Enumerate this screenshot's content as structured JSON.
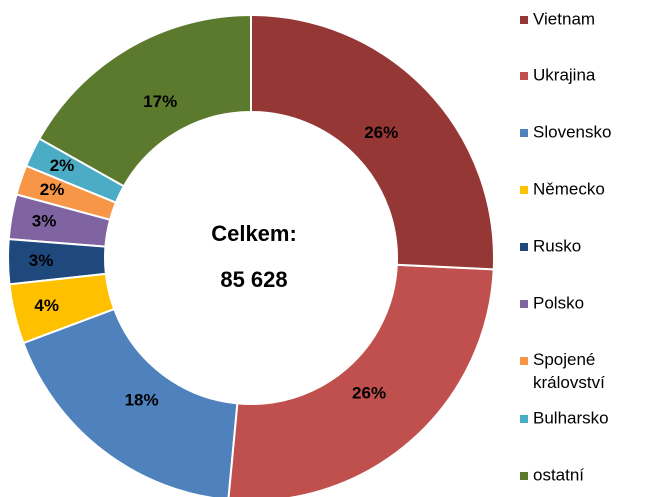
{
  "chart_data": {
    "type": "donut",
    "center_label": "Celkem:",
    "center_value": "85 628",
    "categories": [
      "Vietnam",
      "Ukrajina",
      "Slovensko",
      "Německo",
      "Rusko",
      "Polsko",
      "Spojené království",
      "Bulharsko",
      "ostatní"
    ],
    "values": [
      26,
      26,
      18,
      4,
      3,
      3,
      2,
      2,
      17
    ],
    "value_labels": [
      "26%",
      "26%",
      "18%",
      "4%",
      "3%",
      "3%",
      "2%",
      "2%",
      "17%"
    ],
    "colors": [
      "#953735",
      "#c0504d",
      "#4f81bd",
      "#ffc000",
      "#1f497d",
      "#8064a2",
      "#f79646",
      "#4bacc6",
      "#5c7a2e"
    ],
    "legend": "right"
  }
}
